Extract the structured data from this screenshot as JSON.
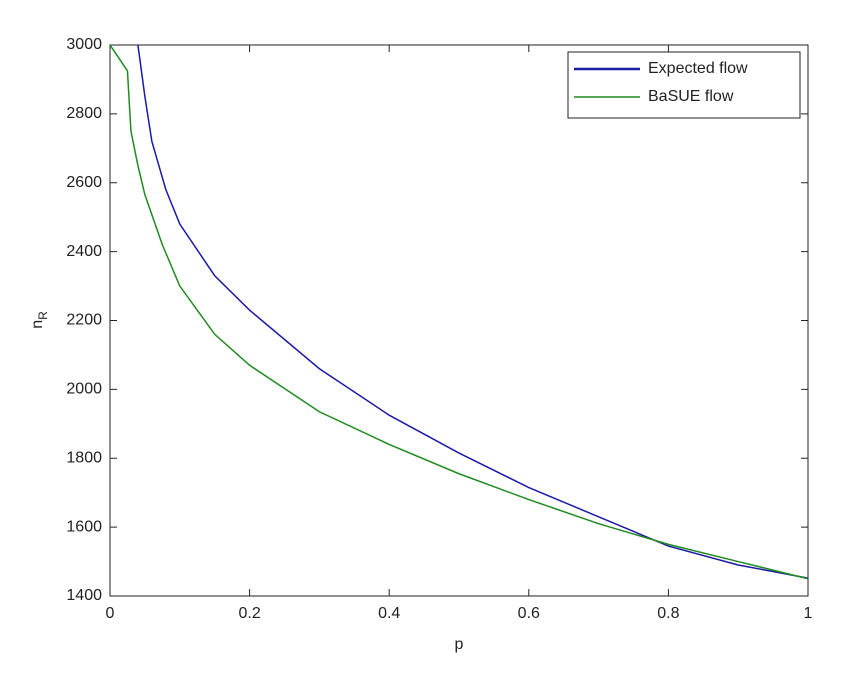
{
  "chart_data": {
    "type": "line",
    "x_label": "p",
    "y_label": "n",
    "y_label_subscript": "R",
    "xlim": [
      0,
      1
    ],
    "xticks": [
      0,
      0.2,
      0.4,
      0.6,
      0.8,
      1
    ],
    "ylim": [
      1400,
      3000
    ],
    "yticks": [
      1400,
      1600,
      1800,
      2000,
      2200,
      2400,
      2600,
      2800,
      3000
    ],
    "legend": "upper right",
    "series": [
      {
        "name": "Expected flow",
        "color": "#1a1aa6",
        "x": [
          0.04,
          0.05,
          0.06,
          0.08,
          0.1,
          0.15,
          0.2,
          0.3,
          0.4,
          0.5,
          0.6,
          0.7,
          0.8,
          0.9,
          1
        ],
        "values": [
          3000,
          2850,
          2720,
          2580,
          2480,
          2330,
          2230,
          2060,
          1925,
          1815,
          1715,
          1630,
          1545,
          1490,
          1452
        ]
      },
      {
        "name": "BaSUE flow",
        "color": "#1f8a1f",
        "x": [
          0,
          0.025,
          0.03,
          0.04,
          0.05,
          0.075,
          0.1,
          0.15,
          0.2,
          0.3,
          0.4,
          0.5,
          0.6,
          0.7,
          0.8,
          0.9,
          1
        ],
        "values": [
          3000,
          2925,
          2750,
          2650,
          2565,
          2420,
          2300,
          2160,
          2070,
          1935,
          1840,
          1755,
          1680,
          1610,
          1550,
          1500,
          1450
        ]
      }
    ]
  }
}
